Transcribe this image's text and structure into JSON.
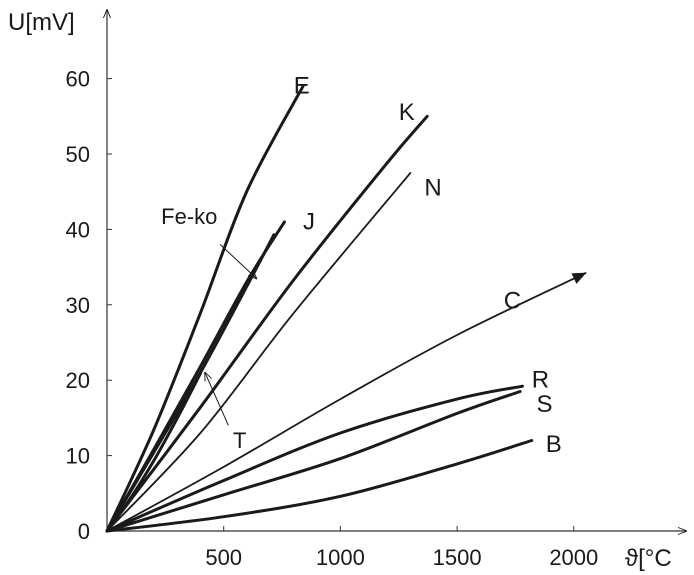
{
  "chart_data": {
    "type": "line",
    "ylabel": "U[mV]",
    "xlabel": "ϑ[°C",
    "xlim": [
      0,
      2200
    ],
    "ylim": [
      0,
      65
    ],
    "x_ticks": [
      500,
      1000,
      1500,
      2000
    ],
    "y_ticks": [
      0,
      10,
      20,
      30,
      40,
      50,
      60
    ],
    "grid": false,
    "series": [
      {
        "name": "E",
        "label_at": [
          800,
          58
        ],
        "points": [
          [
            0,
            0
          ],
          [
            200,
            13.4
          ],
          [
            400,
            28.9
          ],
          [
            600,
            45.1
          ],
          [
            840,
            59
          ]
        ],
        "width": 3
      },
      {
        "name": "J",
        "label_at": [
          840,
          40
        ],
        "points": [
          [
            0,
            0
          ],
          [
            200,
            10.8
          ],
          [
            400,
            21.8
          ],
          [
            600,
            33.1
          ],
          [
            760,
            41
          ]
        ],
        "width": 3
      },
      {
        "name": "Fe-ko",
        "label_at": [
          0,
          0
        ],
        "points": [
          [
            0,
            0
          ],
          [
            200,
            10.4
          ],
          [
            400,
            21
          ],
          [
            600,
            32.5
          ],
          [
            715,
            39.3
          ]
        ],
        "width": 3
      },
      {
        "name": "T",
        "label_at": [
          0,
          0
        ],
        "points": [
          [
            0,
            0
          ],
          [
            100,
            4.3
          ],
          [
            200,
            9.3
          ],
          [
            300,
            14.9
          ],
          [
            400,
            20.9
          ]
        ],
        "width": 3
      },
      {
        "name": "K",
        "label_at": [
          1250,
          54.5
        ],
        "points": [
          [
            0,
            0
          ],
          [
            400,
            16.4
          ],
          [
            800,
            33.3
          ],
          [
            1200,
            48.8
          ],
          [
            1372,
            55
          ]
        ],
        "width": 3
      },
      {
        "name": "N",
        "label_at": [
          1360,
          44.5
        ],
        "points": [
          [
            0,
            0
          ],
          [
            400,
            13
          ],
          [
            800,
            28.9
          ],
          [
            1300,
            47.5
          ]
        ],
        "width": 1.8
      },
      {
        "name": "C",
        "label_at": [
          1700,
          29.5
        ],
        "points": [
          [
            0,
            0
          ],
          [
            500,
            8.5
          ],
          [
            1000,
            17.5
          ],
          [
            1500,
            26
          ],
          [
            2050,
            34.2
          ]
        ],
        "width": 1.8,
        "arrow": true
      },
      {
        "name": "R",
        "label_at": [
          1820,
          19
        ],
        "points": [
          [
            0,
            0
          ],
          [
            500,
            6.7
          ],
          [
            1000,
            13
          ],
          [
            1500,
            17.5
          ],
          [
            1780,
            19.2
          ]
        ],
        "width": 3
      },
      {
        "name": "S",
        "label_at": [
          1840,
          15.8
        ],
        "points": [
          [
            0,
            0
          ],
          [
            500,
            4.8
          ],
          [
            1000,
            9.6
          ],
          [
            1500,
            15.6
          ],
          [
            1770,
            18.5
          ]
        ],
        "width": 3
      },
      {
        "name": "B",
        "label_at": [
          1880,
          10.5
        ],
        "points": [
          [
            0,
            0
          ],
          [
            500,
            1.9
          ],
          [
            1000,
            4.6
          ],
          [
            1500,
            8.9
          ],
          [
            1820,
            12
          ]
        ],
        "width": 3
      }
    ],
    "annotations": [
      {
        "text": "Fe-ko",
        "text_at": [
          232,
          40.7
        ],
        "arrow_from": [
          485,
          38
        ],
        "arrow_to": [
          640,
          33.5
        ]
      },
      {
        "text": "T",
        "text_at": [
          540,
          11
        ],
        "arrow_from": [
          520,
          14
        ],
        "arrow_to": [
          420,
          21
        ]
      }
    ]
  }
}
